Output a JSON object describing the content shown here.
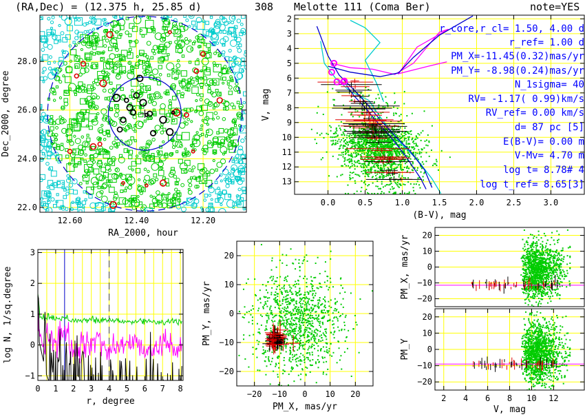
{
  "header": {
    "coords": "(RA,Dec) = (12.375 h, 25.85 d)",
    "number": "308",
    "name": "Melotte 111 (Coma Ber)",
    "note": "note=YES"
  },
  "colors": {
    "background": "#ffffff",
    "grid": "#ffff00",
    "members": "#00cc00",
    "field": "#00cccc",
    "probable": "#dd0000",
    "bright": "#000000",
    "magenta": "#ff00ff",
    "blue": "#0000cc",
    "cyan": "#00cccc",
    "iso_blue": "#3333ff",
    "annot": "#0000ff"
  },
  "chart_data": [
    {
      "id": "sky",
      "type": "scatter",
      "xlabel": "RA_2000, hour",
      "ylabel": "Dec_2000, degree",
      "xlim": [
        12.69,
        12.07
      ],
      "ylim": [
        21.8,
        29.9
      ],
      "xticks": [
        {
          "v": 12.6,
          "t": "12.60"
        },
        {
          "v": 12.4,
          "t": "12.40"
        },
        {
          "v": 12.2,
          "t": "12.20"
        }
      ],
      "yticks": [
        {
          "v": 22.0,
          "t": "22.0"
        },
        {
          "v": 24.0,
          "t": "24.0"
        },
        {
          "v": 26.0,
          "t": "26.0"
        },
        {
          "v": 28.0,
          "t": "28.0"
        }
      ],
      "grid": true,
      "center": [
        12.375,
        25.85
      ],
      "core_radius_deg": 1.5,
      "cluster_radius_deg": 4.0,
      "bright_stars": [
        [
          12.46,
          26.5
        ],
        [
          12.42,
          26.1
        ],
        [
          12.41,
          25.9
        ],
        [
          12.37,
          25.8
        ],
        [
          12.36,
          25.85
        ],
        [
          12.44,
          25.6
        ],
        [
          12.38,
          26.3
        ],
        [
          12.32,
          25.6
        ],
        [
          12.29,
          25.9
        ],
        [
          12.4,
          26.6
        ],
        [
          12.35,
          25.05
        ],
        [
          12.45,
          25.2
        ],
        [
          12.3,
          25.1
        ],
        [
          12.43,
          26.4
        ],
        [
          12.39,
          27.3
        ]
      ],
      "red_stars": [
        [
          12.53,
          24.5
        ],
        [
          12.51,
          24.6
        ],
        [
          12.44,
          23.0
        ],
        [
          12.32,
          23.0
        ],
        [
          12.6,
          24.3
        ],
        [
          12.58,
          27.4
        ],
        [
          12.5,
          27.1
        ],
        [
          12.28,
          25.9
        ],
        [
          12.25,
          25.8
        ],
        [
          12.23,
          24.3
        ],
        [
          12.15,
          26.4
        ],
        [
          12.2,
          28.3
        ],
        [
          12.3,
          29.2
        ],
        [
          12.48,
          29.1
        ],
        [
          12.47,
          22.1
        ],
        [
          12.37,
          22.9
        ],
        [
          12.56,
          27.9
        ],
        [
          12.22,
          27.6
        ]
      ]
    },
    {
      "id": "cmd",
      "type": "scatter",
      "xlabel": "(B-V), mag",
      "ylabel": "V, mag",
      "xlim": [
        -0.45,
        3.45
      ],
      "ylim": [
        13.85,
        1.75
      ],
      "xticks": [
        {
          "v": 0.0,
          "t": "0.0"
        },
        {
          "v": 0.5,
          "t": "0.5"
        },
        {
          "v": 1.0,
          "t": "1.0"
        },
        {
          "v": 1.5,
          "t": "1.5"
        },
        {
          "v": 2.0,
          "t": "2.0"
        },
        {
          "v": 2.5,
          "t": "2.5"
        },
        {
          "v": 3.0,
          "t": "3.0"
        }
      ],
      "yticks": [
        {
          "v": 2,
          "t": "2"
        },
        {
          "v": 3,
          "t": "3"
        },
        {
          "v": 4,
          "t": "4"
        },
        {
          "v": 5,
          "t": "5"
        },
        {
          "v": 6,
          "t": "6"
        },
        {
          "v": 7,
          "t": "7"
        },
        {
          "v": 8,
          "t": "8"
        },
        {
          "v": 9,
          "t": "9"
        },
        {
          "v": 10,
          "t": "10"
        },
        {
          "v": 11,
          "t": "11"
        },
        {
          "v": 12,
          "t": "12"
        },
        {
          "v": 13,
          "t": "13"
        }
      ],
      "grid": true,
      "magenta_stars": [
        [
          0.08,
          5.0
        ],
        [
          0.05,
          5.6
        ],
        [
          0.12,
          6.25
        ],
        [
          0.21,
          6.25
        ],
        [
          0.22,
          6.2
        ]
      ],
      "isochrones": [
        {
          "color": "magenta",
          "points": [
            [
              0.05,
              5.0
            ],
            [
              0.3,
              5.3
            ],
            [
              0.6,
              5.4
            ],
            [
              0.9,
              5.75
            ],
            [
              1.15,
              5.0
            ],
            [
              1.35,
              3.8
            ],
            [
              1.5,
              2.9
            ],
            [
              1.62,
              2.7
            ],
            [
              1.2,
              3.9
            ],
            [
              0.95,
              5.7
            ],
            [
              1.35,
              5.2
            ],
            [
              1.6,
              4.9
            ]
          ]
        },
        {
          "color": "cyan",
          "points": [
            [
              -0.1,
              3.5
            ],
            [
              -0.05,
              5.0
            ],
            [
              0.1,
              6.0
            ],
            [
              0.3,
              6.9
            ],
            [
              0.55,
              7.5
            ],
            [
              0.7,
              8.6
            ],
            [
              0.85,
              9.6
            ],
            [
              1.0,
              10.5
            ],
            [
              1.2,
              11.5
            ],
            [
              1.4,
              12.8
            ],
            [
              1.52,
              13.8
            ]
          ]
        },
        {
          "color": "cyan",
          "points": [
            [
              0.3,
              2.1
            ],
            [
              0.5,
              2.6
            ],
            [
              0.7,
              3.6
            ],
            [
              0.5,
              4.8
            ],
            [
              0.65,
              6.3
            ],
            [
              0.75,
              7.6
            ]
          ]
        },
        {
          "color": "blue",
          "points": [
            [
              -0.15,
              2.5
            ],
            [
              0.0,
              4.5
            ],
            [
              0.15,
              5.8
            ],
            [
              0.35,
              6.8
            ],
            [
              0.5,
              7.6
            ],
            [
              0.7,
              8.8
            ],
            [
              0.9,
              9.9
            ],
            [
              1.1,
              10.9
            ],
            [
              1.3,
              12.2
            ],
            [
              1.4,
              13.4
            ]
          ]
        },
        {
          "color": "blue",
          "points": [
            [
              0.0,
              5.2
            ],
            [
              0.3,
              5.6
            ],
            [
              0.7,
              5.9
            ],
            [
              0.95,
              5.65
            ],
            [
              1.15,
              4.6
            ],
            [
              1.5,
              3.1
            ],
            [
              1.95,
              1.8
            ]
          ]
        },
        {
          "color": "blue",
          "points": [
            [
              0.25,
              6.5
            ],
            [
              0.35,
              7.2
            ],
            [
              0.5,
              8.0
            ],
            [
              0.65,
              8.9
            ],
            [
              0.85,
              10.0
            ],
            [
              1.05,
              11.3
            ],
            [
              1.25,
              12.8
            ],
            [
              1.32,
              13.5
            ]
          ]
        }
      ]
    },
    {
      "id": "density",
      "type": "line",
      "xlabel": "r, degree",
      "ylabel": "log N, 1/sq.degree",
      "xlim": [
        0,
        8.15
      ],
      "ylim": [
        -1.15,
        3.1
      ],
      "xticks": [
        {
          "v": 0,
          "t": "0"
        },
        {
          "v": 1,
          "t": "1"
        },
        {
          "v": 2,
          "t": "2"
        },
        {
          "v": 3,
          "t": "3"
        },
        {
          "v": 4,
          "t": "4"
        },
        {
          "v": 5,
          "t": "5"
        },
        {
          "v": 6,
          "t": "6"
        },
        {
          "v": 7,
          "t": "7"
        },
        {
          "v": 8,
          "t": "8"
        }
      ],
      "yticks": [
        {
          "v": -1,
          "t": "−1"
        },
        {
          "v": 0,
          "t": "0"
        },
        {
          "v": 1,
          "t": "1"
        },
        {
          "v": 2,
          "t": "2"
        },
        {
          "v": 3,
          "t": "3"
        }
      ],
      "grid": true,
      "core_radius": 1.5,
      "cluster_radius": 4.0,
      "series": [
        {
          "color": "green",
          "values": [
            [
              0.0,
              1.7
            ],
            [
              0.1,
              1.0
            ],
            [
              0.3,
              0.85
            ],
            [
              0.6,
              0.95
            ],
            [
              1.0,
              0.85
            ],
            [
              1.5,
              0.9
            ],
            [
              2.0,
              0.8
            ],
            [
              3.0,
              0.8
            ],
            [
              4.0,
              0.8
            ],
            [
              5.0,
              0.75
            ],
            [
              6.0,
              0.78
            ],
            [
              7.0,
              0.75
            ],
            [
              8.1,
              0.75
            ]
          ]
        },
        {
          "color": "magenta",
          "values": [
            [
              0.0,
              0.9
            ],
            [
              0.3,
              -0.2
            ],
            [
              0.6,
              0.3
            ],
            [
              1.0,
              0.1
            ],
            [
              1.5,
              0.4
            ],
            [
              2.0,
              -0.3
            ],
            [
              2.5,
              0.1
            ],
            [
              3.0,
              0.0
            ],
            [
              3.5,
              0.2
            ],
            [
              4.0,
              -0.2
            ],
            [
              5.0,
              0.1
            ],
            [
              6.0,
              -0.1
            ],
            [
              7.0,
              0.0
            ],
            [
              8.1,
              -0.05
            ]
          ]
        },
        {
          "color": "black",
          "values": [
            [
              0.0,
              1.5
            ],
            [
              0.5,
              0.2
            ],
            [
              1.0,
              -0.5
            ],
            [
              2.0,
              -0.6
            ],
            [
              3.0,
              -0.7
            ],
            [
              4.0,
              -0.8
            ],
            [
              5.0,
              -0.9
            ],
            [
              6.0,
              -1.0
            ],
            [
              7.0,
              -1.0
            ],
            [
              8.1,
              -1.1
            ]
          ]
        }
      ]
    },
    {
      "id": "pm",
      "type": "scatter",
      "xlabel": "PM_X, mas/yr",
      "ylabel": "PM_Y, mas/yr",
      "xlim": [
        -27,
        27
      ],
      "ylim": [
        -25,
        25
      ],
      "xticks": [
        {
          "v": -20,
          "t": "−20"
        },
        {
          "v": -10,
          "t": "−10"
        },
        {
          "v": 0,
          "t": "0"
        },
        {
          "v": 10,
          "t": "10"
        },
        {
          "v": 20,
          "t": "20"
        }
      ],
      "yticks": [
        {
          "v": -20,
          "t": "−20"
        },
        {
          "v": -10,
          "t": "−10"
        },
        {
          "v": 0,
          "t": "0"
        },
        {
          "v": 10,
          "t": "10"
        },
        {
          "v": 20,
          "t": "20"
        }
      ],
      "grid": true,
      "cluster_pm": [
        -11.45,
        -8.98
      ]
    },
    {
      "id": "pmx_v",
      "type": "scatter",
      "xlabel": "",
      "ylabel": "PM_X, mas/yr",
      "xlim": [
        1.2,
        14.8
      ],
      "ylim": [
        -25,
        25
      ],
      "xticks": [],
      "yticks": [
        {
          "v": -20,
          "t": "−20"
        },
        {
          "v": -10,
          "t": "−10"
        },
        {
          "v": 0,
          "t": "0"
        },
        {
          "v": 10,
          "t": "10"
        },
        {
          "v": 20,
          "t": "20"
        }
      ],
      "grid": true,
      "mean": -11.45
    },
    {
      "id": "pmy_v",
      "type": "scatter",
      "xlabel": "V, mag",
      "ylabel": "PM_Y",
      "xlim": [
        1.2,
        14.8
      ],
      "ylim": [
        -25,
        25
      ],
      "xticks": [
        {
          "v": 2,
          "t": "2"
        },
        {
          "v": 4,
          "t": "4"
        },
        {
          "v": 6,
          "t": "6"
        },
        {
          "v": 8,
          "t": "8"
        },
        {
          "v": 10,
          "t": "10"
        },
        {
          "v": 12,
          "t": "12"
        }
      ],
      "yticks": [
        {
          "v": -20,
          "t": "−20"
        },
        {
          "v": -10,
          "t": "−10"
        },
        {
          "v": 0,
          "t": "0"
        },
        {
          "v": 10,
          "t": "10"
        },
        {
          "v": 20,
          "t": "20"
        }
      ],
      "grid": true,
      "mean": -8.98
    }
  ],
  "params": [
    "r_core,r_cl=  1.50, 4.00 d",
    "r_ref=  1.00 d",
    "PM_X=-11.45(0.32)mas/yr",
    "PM_Y= -8.98(0.24)mas/yr",
    "N_1sigma= 40",
    "RV= -1.17( 0.99)km/s",
    "RV_ref= 0.00 km/s",
    "d=  87 pc [5]",
    "E(B-V)= 0.00 m",
    "V-Mv= 4.70 m",
    "log t= 8.78# 4",
    "log t_ref= 8.65[3]"
  ]
}
